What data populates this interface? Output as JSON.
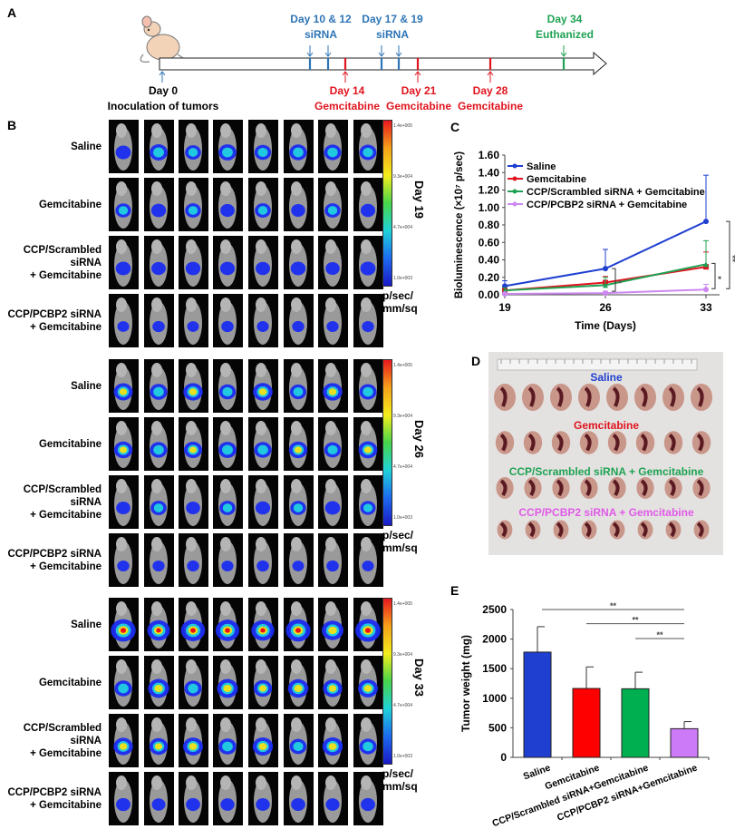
{
  "panels": {
    "a": "A",
    "b": "B",
    "c": "C",
    "d": "D",
    "e": "E"
  },
  "timeline": {
    "day0": "Day 0",
    "inoculation": "Inoculation of tumors",
    "sirna1_days": "Day 10 & 12",
    "sirna1": "siRNA",
    "sirna2_days": "Day 17 & 19",
    "sirna2": "siRNA",
    "gem1_day": "Day 14",
    "gem1": "Gemcitabine",
    "gem2_day": "Day 21",
    "gem2": "Gemcitabine",
    "gem3_day": "Day 28",
    "gem3": "Gemcitabine",
    "end_day": "Day 34",
    "end": "Euthanized",
    "colors": {
      "sirna": "#2e75b6",
      "gemcitabine": "#e0141e",
      "end": "#1fa253"
    }
  },
  "imaging": {
    "groups": [
      {
        "day": "Day 19",
        "rows": [
          "Saline",
          "Gemcitabine",
          "CCP/Scrambled siRNA + Gemcitabine",
          "CCP/PCBP2 siRNA + Gemcitabine"
        ]
      },
      {
        "day": "Day 26",
        "rows": [
          "Saline",
          "Gemcitabine",
          "CCP/Scrambled siRNA + Gemcitabine",
          "CCP/PCBP2 siRNA + Gemcitabine"
        ]
      },
      {
        "day": "Day 33",
        "rows": [
          "Saline",
          "Gemcitabine",
          "CCP/Scrambled siRNA + Gemcitabine",
          "CCP/PCBP2 siRNA + Gemcitabine"
        ]
      }
    ],
    "colorbar_ticks": [
      "1.4e+005",
      "9.3e+004",
      "4.7e+004",
      "1.0e+003"
    ],
    "unit_line1": "p/sec/",
    "unit_line2": "mm/sq"
  },
  "photo": {
    "labels": [
      {
        "text": "Saline",
        "color": "#1f3fd0"
      },
      {
        "text": "Gemcitabine",
        "color": "#e0141e"
      },
      {
        "text": "CCP/Scrambled siRNA + Gemcitabine",
        "color": "#1fa253"
      },
      {
        "text": "CCP/PCBP2 siRNA + Gemcitabine",
        "color": "#e05ae8"
      }
    ]
  },
  "chart_data": [
    {
      "type": "line",
      "xlabel": "Time (Days)",
      "ylabel": "Bioluminescence (×10⁷ p/sec)",
      "x": [
        19,
        26,
        33
      ],
      "xticks": [
        "19",
        "26",
        "33"
      ],
      "yticks": [
        "0.00",
        "0.20",
        "0.40",
        "0.60",
        "0.80",
        "1.00",
        "1.20",
        "1.40",
        "1.60"
      ],
      "ylim": [
        0,
        1.6
      ],
      "legend": "top-left",
      "series": [
        {
          "name": "Saline",
          "color": "#1f3fd0",
          "marker": "circle",
          "values": [
            0.1,
            0.3,
            0.84
          ],
          "err": [
            0.06,
            0.22,
            0.53
          ]
        },
        {
          "name": "Gemcitabine",
          "color": "#e0141e",
          "marker": "square",
          "values": [
            0.05,
            0.14,
            0.32
          ],
          "err": [
            0.03,
            0.07,
            0.17
          ]
        },
        {
          "name": "CCP/Scrambled siRNA + Gemcitabine",
          "color": "#1fa253",
          "marker": "triangle",
          "values": [
            0.05,
            0.11,
            0.35
          ],
          "err": [
            0.03,
            0.09,
            0.27
          ]
        },
        {
          "name": "CCP/PCBP2 siRNA + Gemcitabine",
          "color": "#cc88f0",
          "marker": "x",
          "values": [
            0.01,
            0.02,
            0.06
          ],
          "err": [
            0.01,
            0.02,
            0.06
          ]
        }
      ],
      "significance": [
        {
          "label": "*"
        },
        {
          "label": "*"
        },
        {
          "label": "**"
        }
      ]
    },
    {
      "type": "bar",
      "ylabel": "Tumor weight (mg)",
      "categories": [
        "Saline",
        "Gemcitabine",
        "CCP/Scrambled siRNA+Gemcitabine",
        "CCP/PCBP2 siRNA+Gemcitabine"
      ],
      "values": [
        1780,
        1165,
        1160,
        485
      ],
      "err": [
        430,
        365,
        280,
        120
      ],
      "colors": [
        "#1f3fd0",
        "#fe0000",
        "#00b050",
        "#cc7af8"
      ],
      "yticks": [
        "0",
        "500",
        "1000",
        "1500",
        "2000",
        "2500"
      ],
      "ylim": [
        0,
        2500
      ],
      "significance": [
        {
          "label": "**"
        },
        {
          "label": "**"
        },
        {
          "label": "**"
        }
      ]
    }
  ]
}
